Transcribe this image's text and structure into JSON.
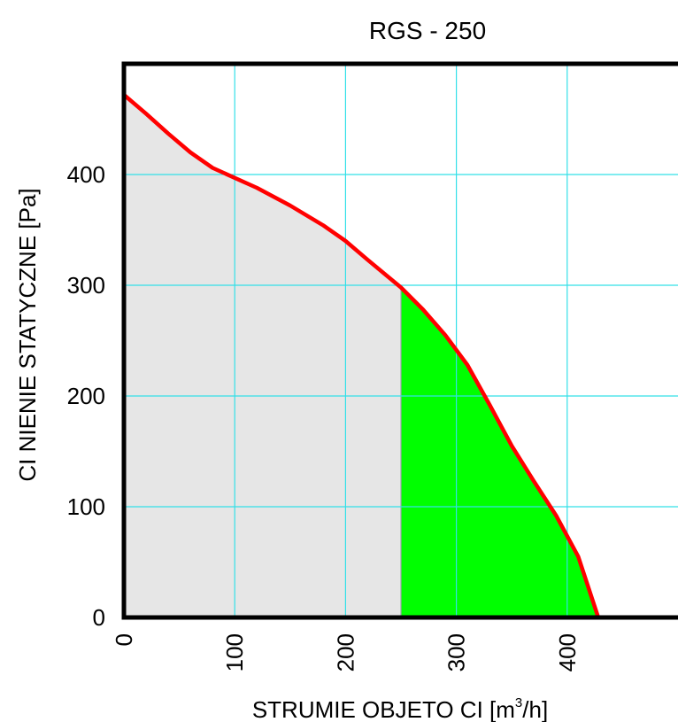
{
  "chart_data": {
    "type": "area",
    "title": "RGS - 250",
    "xlabel_prefix": "STRUMIE   OBJETO  CI [m",
    "xlabel_sup": "3",
    "xlabel_suffix": "/h]",
    "ylabel": "CI  NIENIE STATYCZNE [Pa]",
    "xlim": [
      0,
      500
    ],
    "ylim": [
      0,
      500
    ],
    "x_ticks": [
      0,
      100,
      200,
      300,
      400
    ],
    "y_ticks": [
      0,
      100,
      200,
      300,
      400
    ],
    "x_gridlines": [
      100,
      200,
      300,
      400
    ],
    "y_gridlines": [
      100,
      200,
      300,
      400
    ],
    "grid": true,
    "highlight_range": [
      250,
      428
    ],
    "colors": {
      "curve": "#ff0000",
      "fill_low": "#e6e6e6",
      "fill_high": "#00ff00",
      "grid": "#33e0e8",
      "axis": "#000000"
    },
    "series": [
      {
        "x": [
          0,
          20,
          40,
          60,
          80,
          100,
          120,
          150,
          180,
          200,
          220,
          250,
          270,
          290,
          310,
          330,
          350,
          370,
          390,
          410,
          428
        ],
        "y": [
          472,
          455,
          437,
          420,
          406,
          397,
          388,
          372,
          354,
          340,
          323,
          298,
          278,
          255,
          228,
          192,
          155,
          123,
          92,
          55,
          0
        ]
      }
    ]
  }
}
